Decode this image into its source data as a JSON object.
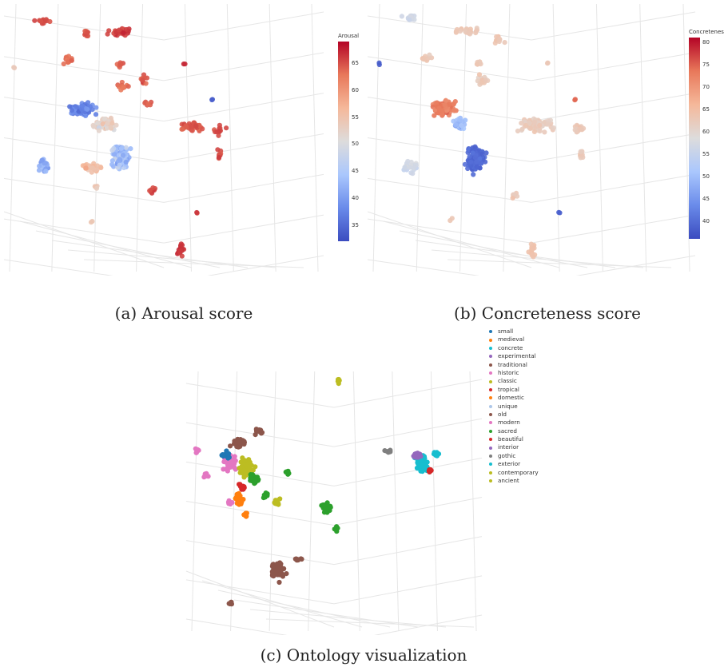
{
  "captions": {
    "a": "(a) Arousal score",
    "b": "(b) Concreteness score",
    "c": "(c) Ontology visualization"
  },
  "chart_data": [
    {
      "type": "scatter",
      "title": "",
      "colorbar": {
        "title": "Arousal",
        "range": [
          32,
          69
        ],
        "ticks": [
          35,
          40,
          45,
          50,
          55,
          60,
          65
        ]
      },
      "colorscale": [
        "#3b4cc0",
        "#6a8bea",
        "#aac7fd",
        "#dddcdc",
        "#f5b89a",
        "#e8785a",
        "#b40426"
      ]
    },
    {
      "type": "scatter",
      "title": "",
      "colorbar": {
        "title": "Concreteness",
        "range": [
          36,
          81
        ],
        "ticks": [
          40,
          45,
          50,
          55,
          60,
          65,
          70,
          75,
          80
        ]
      },
      "colorscale": [
        "#3b4cc0",
        "#6a8bea",
        "#aac7fd",
        "#dddcdc",
        "#f5b89a",
        "#e8785a",
        "#b40426"
      ]
    },
    {
      "type": "scatter",
      "title": "",
      "legend": {
        "placement": "top-right",
        "entries": [
          {
            "name": "small",
            "color": "#1f77b4"
          },
          {
            "name": "medieval",
            "color": "#ff7f0e"
          },
          {
            "name": "concrete",
            "color": "#17becf"
          },
          {
            "name": "experimental",
            "color": "#9467bd"
          },
          {
            "name": "traditional",
            "color": "#8c564b"
          },
          {
            "name": "historic",
            "color": "#e377c2"
          },
          {
            "name": "classic",
            "color": "#bcbd22"
          },
          {
            "name": "tropical",
            "color": "#d62728"
          },
          {
            "name": "domestic",
            "color": "#ff7f0e"
          },
          {
            "name": "unique",
            "color": "#aec7e8"
          },
          {
            "name": "old",
            "color": "#8c564b"
          },
          {
            "name": "modern",
            "color": "#e377c2"
          },
          {
            "name": "sacred",
            "color": "#2ca02c"
          },
          {
            "name": "beautiful",
            "color": "#d62728"
          },
          {
            "name": "interior",
            "color": "#9467bd"
          },
          {
            "name": "gothic",
            "color": "#7f7f7f"
          },
          {
            "name": "exterior",
            "color": "#17becf"
          },
          {
            "name": "contemporary",
            "color": "#bcbd22"
          },
          {
            "name": "ancient",
            "color": "#bcbd22"
          }
        ]
      }
    }
  ]
}
